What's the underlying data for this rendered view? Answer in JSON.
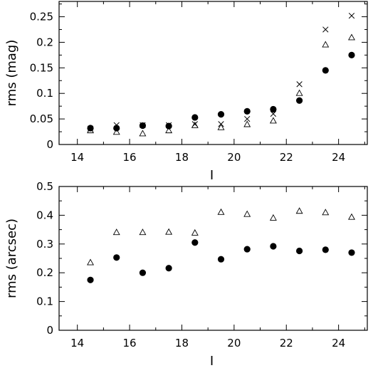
{
  "chart_data": [
    {
      "type": "scatter",
      "xlabel": "I",
      "ylabel": "rms  (mag)",
      "xlim": [
        13.3,
        25.1
      ],
      "ylim": [
        0,
        0.28
      ],
      "xticks": [
        14,
        16,
        18,
        20,
        22,
        24
      ],
      "xtick_labels": [
        "14",
        "16",
        "18",
        "20",
        "22",
        "24"
      ],
      "yticks": [
        0,
        0.05,
        0.1,
        0.15,
        0.2,
        0.25
      ],
      "ytick_labels": [
        "0",
        "0.05",
        "0.1",
        "0.15",
        "0.2",
        "0.25"
      ],
      "series": [
        {
          "marker": "filled-circle",
          "x": [
            14.5,
            15.5,
            16.5,
            17.5,
            18.5,
            19.5,
            20.5,
            21.5,
            22.5,
            23.5,
            24.5
          ],
          "y": [
            0.032,
            0.032,
            0.037,
            0.036,
            0.053,
            0.059,
            0.065,
            0.069,
            0.086,
            0.145,
            0.175
          ]
        },
        {
          "marker": "cross",
          "x": [
            14.5,
            15.5,
            16.5,
            17.5,
            18.5,
            19.5,
            20.5,
            21.5,
            22.5,
            23.5,
            24.5
          ],
          "y": [
            0.031,
            0.038,
            0.038,
            0.038,
            0.04,
            0.04,
            0.05,
            0.06,
            0.118,
            0.225,
            0.252
          ]
        },
        {
          "marker": "open-triangle",
          "x": [
            14.5,
            15.5,
            16.5,
            17.5,
            18.5,
            19.5,
            20.5,
            21.5,
            22.5,
            23.5,
            24.5
          ],
          "y": [
            0.027,
            0.024,
            0.021,
            0.027,
            0.037,
            0.033,
            0.039,
            0.046,
            0.1,
            0.195,
            0.209
          ]
        }
      ]
    },
    {
      "type": "scatter",
      "xlabel": "I",
      "ylabel": "rms  (arcsec)",
      "xlim": [
        13.3,
        25.1
      ],
      "ylim": [
        0,
        0.5
      ],
      "xticks": [
        14,
        16,
        18,
        20,
        22,
        24
      ],
      "xtick_labels": [
        "14",
        "16",
        "18",
        "20",
        "22",
        "24"
      ],
      "yticks": [
        0,
        0.1,
        0.2,
        0.3,
        0.4,
        0.5
      ],
      "ytick_labels": [
        "0",
        "0.1",
        "0.2",
        "0.3",
        "0.4",
        "0.5"
      ],
      "series": [
        {
          "marker": "filled-circle",
          "x": [
            14.5,
            15.5,
            16.5,
            17.5,
            18.5,
            19.5,
            20.5,
            21.5,
            22.5,
            23.5,
            24.5
          ],
          "y": [
            0.175,
            0.253,
            0.2,
            0.216,
            0.305,
            0.247,
            0.282,
            0.292,
            0.276,
            0.28,
            0.27
          ]
        },
        {
          "marker": "open-triangle",
          "x": [
            14.5,
            15.5,
            16.5,
            17.5,
            18.5,
            19.5,
            20.5,
            21.5,
            22.5,
            23.5,
            24.5
          ],
          "y": [
            0.235,
            0.34,
            0.34,
            0.341,
            0.338,
            0.41,
            0.403,
            0.39,
            0.414,
            0.409,
            0.393
          ]
        }
      ]
    }
  ]
}
